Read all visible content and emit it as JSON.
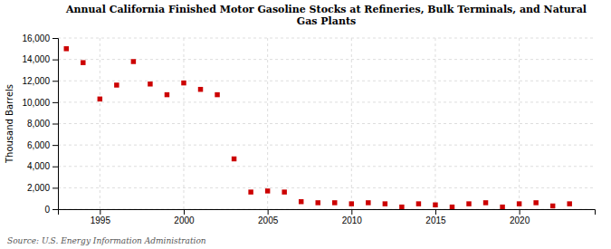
{
  "chart_data": {
    "type": "scatter",
    "title": "Annual California Finished Motor Gasoline Stocks at Refineries, Bulk Terminals, and Natural\nGas Plants",
    "y_label": "Thousand Barrels",
    "annotations": [
      "Source: U.S. Energy Information Administration"
    ],
    "x": [
      1993,
      1994,
      1995,
      1996,
      1997,
      1998,
      1999,
      2000,
      2001,
      2002,
      2003,
      2004,
      2005,
      2006,
      2007,
      2008,
      2009,
      2010,
      2011,
      2012,
      2013,
      2014,
      2015,
      2016,
      2017,
      2018,
      2019,
      2020,
      2021,
      2022,
      2023
    ],
    "values": [
      15000,
      13700,
      10300,
      11600,
      13800,
      11700,
      10700,
      11800,
      11200,
      10700,
      4700,
      1600,
      1700,
      1600,
      700,
      600,
      600,
      500,
      600,
      500,
      200,
      500,
      400,
      200,
      500,
      600,
      200,
      500,
      600,
      300,
      500
    ],
    "color": "#cc0000",
    "marker": "square",
    "xlim": [
      1992.5,
      2024.5
    ],
    "xticks": [
      1995,
      2000,
      2005,
      2010,
      2015,
      2020
    ],
    "ylim": [
      0,
      16000
    ],
    "yticks": [
      0,
      {
        "value": 2000,
        "label": "2,000"
      },
      {
        "value": 4000,
        "label": "4,000"
      },
      {
        "value": 6000,
        "label": "6,000"
      },
      {
        "value": 8000,
        "label": "8,000"
      },
      {
        "value": 10000,
        "label": "10,000"
      },
      {
        "value": 12000,
        "label": "12,000"
      },
      {
        "value": 14000,
        "label": "14,000"
      },
      {
        "value": 16000,
        "label": "16,000"
      }
    ],
    "grid": true
  }
}
